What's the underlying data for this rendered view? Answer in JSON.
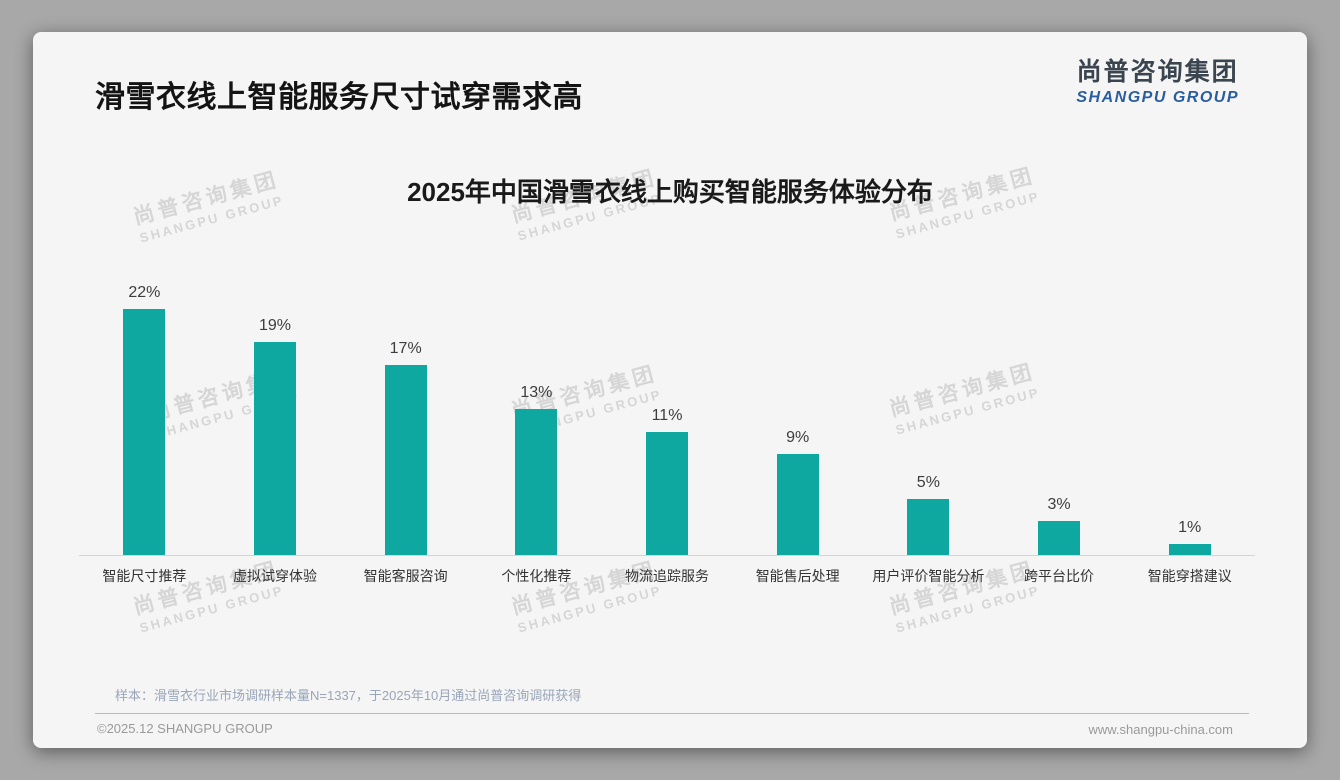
{
  "page": {
    "header_title": "滑雪衣线上智能服务尺寸试穿需求高",
    "logo": {
      "cn": "尚普咨询集团",
      "en": "SHANGPU GROUP"
    },
    "watermark": {
      "cn": "尚普咨询集团",
      "en": "SHANGPU GROUP"
    },
    "footnote": "样本：滑雪衣行业市场调研样本量N=1337，于2025年10月通过尚普咨询调研获得",
    "footer": {
      "left": "©2025.12 SHANGPU GROUP",
      "right": "www.shangpu-china.com"
    },
    "colors": {
      "bar": "#0ea8a0",
      "logo_blue": "#2a5d9f",
      "logo_dark": "#3b4550",
      "card_bg": "#f5f5f5",
      "outer_bg": "#a8a8a8"
    }
  },
  "chart_data": {
    "type": "bar",
    "title": "2025年中国滑雪衣线上购买智能服务体验分布",
    "categories": [
      "智能尺寸推荐",
      "虚拟试穿体验",
      "智能客服咨询",
      "个性化推荐",
      "物流追踪服务",
      "智能售后处理",
      "用户评价智能分析",
      "跨平台比价",
      "智能穿搭建议"
    ],
    "values": [
      22,
      19,
      17,
      13,
      11,
      9,
      5,
      3,
      1
    ],
    "unit": "%",
    "value_labels": [
      "22%",
      "19%",
      "17%",
      "13%",
      "11%",
      "9%",
      "5%",
      "3%",
      "1%"
    ],
    "xlabel": "",
    "ylabel": "",
    "ylim": [
      0,
      25
    ],
    "grid": false,
    "legend": false,
    "bar_color": "#0ea8a0"
  }
}
